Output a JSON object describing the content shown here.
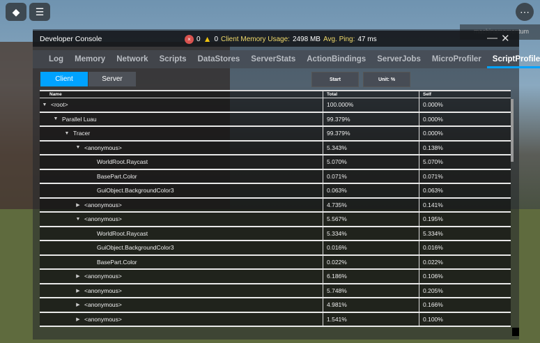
{
  "top": {
    "watermark": "machinamomentum"
  },
  "console": {
    "title": "Developer Console",
    "errors": "0",
    "warnings": "0",
    "memory_label": "Client Memory Usage:",
    "memory_value": "2498 MB",
    "ping_label": "Avg. Ping:",
    "ping_value": "47 ms",
    "minimize": "—",
    "close": "✕"
  },
  "tabs": [
    "Log",
    "Memory",
    "Network",
    "Scripts",
    "DataStores",
    "ServerStats",
    "ActionBindings",
    "ServerJobs",
    "MicroProfiler",
    "ScriptProfiler"
  ],
  "active_tab": "ScriptProfiler",
  "accent": "#00a2ff",
  "segment": {
    "client": "Client",
    "server": "Server",
    "selected": "Client"
  },
  "buttons": {
    "start": "Start",
    "unit": "Unit: %"
  },
  "table": {
    "headers": [
      "Name",
      "Total",
      "Self"
    ],
    "rows": [
      {
        "depth": 0,
        "arrow": "down",
        "name": "<root>",
        "total": "100.000%",
        "self": "0.000%"
      },
      {
        "depth": 1,
        "arrow": "down",
        "name": "Parallel Luau",
        "total": "99.379%",
        "self": "0.000%"
      },
      {
        "depth": 2,
        "arrow": "down",
        "name": "Tracer",
        "total": "99.379%",
        "self": "0.000%"
      },
      {
        "depth": 3,
        "arrow": "down",
        "name": "<anonymous>",
        "total": "5.343%",
        "self": "0.138%"
      },
      {
        "depth": 4,
        "arrow": "",
        "name": "WorldRoot.Raycast",
        "total": "5.070%",
        "self": "5.070%"
      },
      {
        "depth": 4,
        "arrow": "",
        "name": "BasePart.Color",
        "total": "0.071%",
        "self": "0.071%"
      },
      {
        "depth": 4,
        "arrow": "",
        "name": "GuiObject.BackgroundColor3",
        "total": "0.063%",
        "self": "0.063%"
      },
      {
        "depth": 3,
        "arrow": "right",
        "name": "<anonymous>",
        "total": "4.735%",
        "self": "0.141%"
      },
      {
        "depth": 3,
        "arrow": "down",
        "name": "<anonymous>",
        "total": "5.567%",
        "self": "0.195%"
      },
      {
        "depth": 4,
        "arrow": "",
        "name": "WorldRoot.Raycast",
        "total": "5.334%",
        "self": "5.334%"
      },
      {
        "depth": 4,
        "arrow": "",
        "name": "GuiObject.BackgroundColor3",
        "total": "0.016%",
        "self": "0.016%"
      },
      {
        "depth": 4,
        "arrow": "",
        "name": "BasePart.Color",
        "total": "0.022%",
        "self": "0.022%"
      },
      {
        "depth": 3,
        "arrow": "right",
        "name": "<anonymous>",
        "total": "6.186%",
        "self": "0.106%"
      },
      {
        "depth": 3,
        "arrow": "right",
        "name": "<anonymous>",
        "total": "5.748%",
        "self": "0.205%"
      },
      {
        "depth": 3,
        "arrow": "right",
        "name": "<anonymous>",
        "total": "4.981%",
        "self": "0.166%"
      },
      {
        "depth": 3,
        "arrow": "right",
        "name": "<anonymous>",
        "total": "1.541%",
        "self": "0.100%"
      }
    ]
  }
}
